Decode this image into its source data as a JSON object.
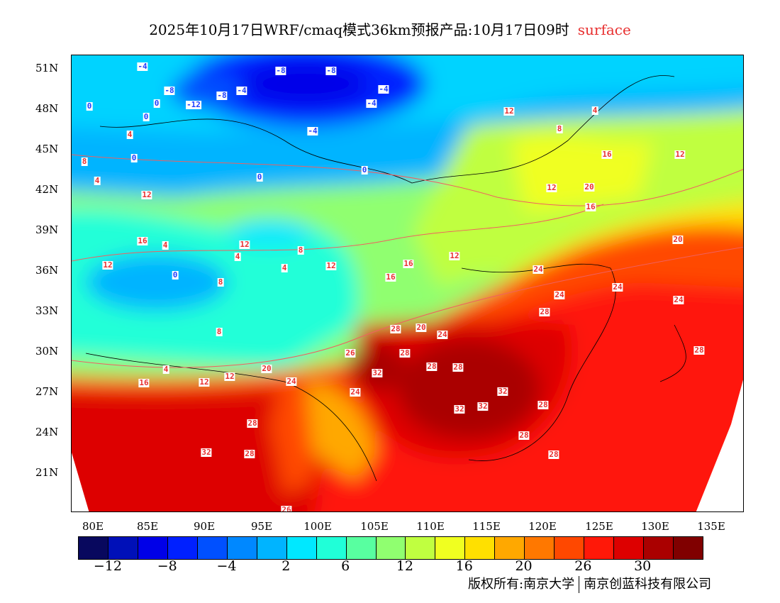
{
  "title": {
    "main": "2025年10月17日WRF/cmaq模式36km预报产品:10月17日09时",
    "variable": "surface"
  },
  "lat_labels": [
    "51N",
    "48N",
    "45N",
    "42N",
    "39N",
    "36N",
    "33N",
    "30N",
    "27N",
    "24N",
    "21N"
  ],
  "lon_labels": [
    "80E",
    "85E",
    "90E",
    "95E",
    "100E",
    "105E",
    "110E",
    "115E",
    "120E",
    "125E",
    "130E",
    "135E"
  ],
  "colorbar": {
    "colors": [
      "#08085e",
      "#0010b8",
      "#0000e8",
      "#0020ff",
      "#0050ff",
      "#0088ff",
      "#00b4ff",
      "#00e8ff",
      "#20ffd8",
      "#58ffa0",
      "#90ff70",
      "#c0ff40",
      "#f0ff20",
      "#ffe000",
      "#ffa800",
      "#ff7800",
      "#ff4800",
      "#ff1808",
      "#dd0000",
      "#aa0000",
      "#800000"
    ],
    "labels": [
      "−12",
      "−8",
      "−4",
      "2",
      "6",
      "12",
      "16",
      "20",
      "26",
      "30"
    ]
  },
  "contour_labels": [
    "-4",
    "-8",
    "-8",
    "-8",
    "-4",
    "-4",
    "-12",
    "-8",
    "-4",
    "-4",
    "0",
    "0",
    "0",
    "0",
    "0",
    "0",
    "4",
    "4",
    "8",
    "12",
    "12",
    "8",
    "4",
    "12",
    "16",
    "12",
    "16",
    "20",
    "20",
    "24",
    "24",
    "24",
    "24",
    "28",
    "28",
    "26",
    "28",
    "28",
    "32",
    "32",
    "32",
    "32",
    "28",
    "28",
    "28",
    "28",
    "28",
    "32",
    "12",
    "16",
    "16",
    "20",
    "24",
    "4",
    "8",
    "4",
    "12",
    "12",
    "12",
    "16",
    "0",
    "4",
    "8",
    "8",
    "4",
    "12",
    "16",
    "12",
    "24",
    "28",
    "26",
    "28",
    "20",
    "24"
  ],
  "copyright": {
    "left": "版权所有:南京大学",
    "right": "南京创蓝科技有限公司"
  }
}
